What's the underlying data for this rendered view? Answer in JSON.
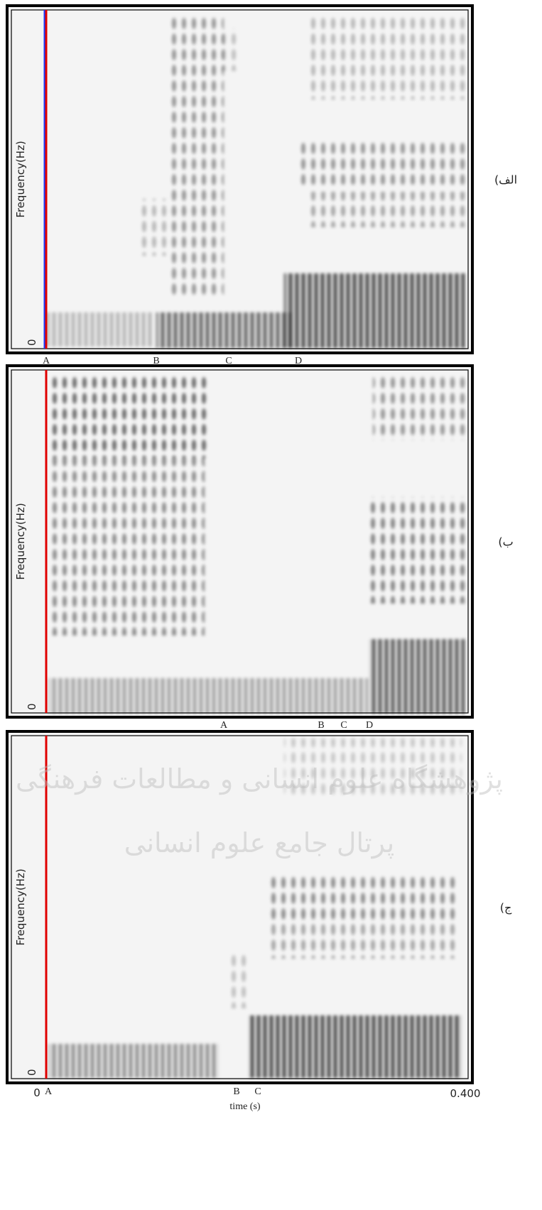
{
  "panels": [
    {
      "label": "الف)",
      "y_axis_label": "Frequency(Hz)",
      "y_origin_label": "0",
      "markers": [
        "A",
        "B",
        "C",
        "D"
      ]
    },
    {
      "label": "ب)",
      "y_axis_label": "Frequency(Hz)",
      "y_origin_label": "0",
      "markers": [
        "A",
        "B",
        "C",
        "D"
      ]
    },
    {
      "label": "ج)",
      "y_axis_label": "Frequency(Hz)",
      "y_origin_label": "0",
      "markers": []
    }
  ],
  "x_axis": {
    "start_label": "0",
    "end_label": "0.400",
    "title": "time (s)",
    "markers": [
      "A",
      "B",
      "C"
    ]
  },
  "watermark": [
    "پژوهشگاه علوم انسانی و مطالعات فرهنگی",
    "پرتال جامع علوم انسانی"
  ]
}
